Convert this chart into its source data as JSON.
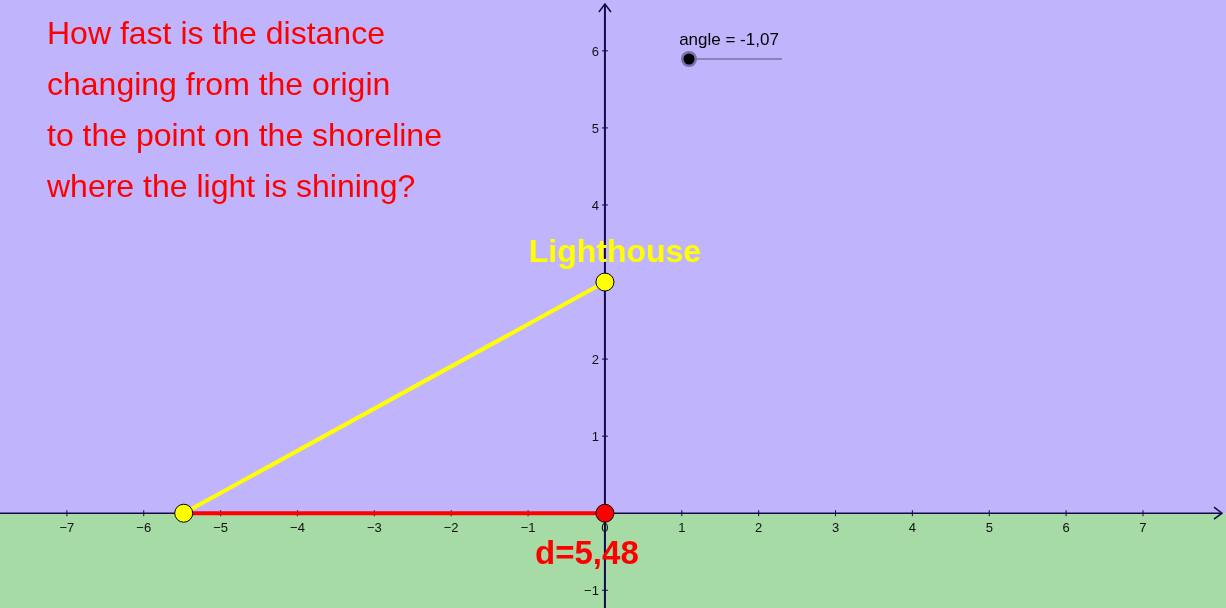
{
  "chart_data": {
    "type": "line",
    "xlim": [
      -7.87,
      8.08
    ],
    "ylim": [
      -1.23,
      6.66
    ],
    "xticks": [
      -7,
      -6,
      -5,
      -4,
      -3,
      -2,
      -1,
      0,
      1,
      2,
      3,
      4,
      5,
      6,
      7
    ],
    "yticks": [
      -1,
      1,
      2,
      {
        "value": 3,
        "label": null
      },
      4,
      5,
      6
    ],
    "grid": false,
    "x": [
      -5.48,
      0
    ],
    "bands": [
      {
        "axis": "y",
        "from": -1.23,
        "to": 0,
        "color": "#a6dba6"
      },
      {
        "axis": "y",
        "from": 0,
        "to": 6.66,
        "color": "#c0b5fc"
      }
    ],
    "series": [
      {
        "color": "#ff0000",
        "values": [
          0,
          0
        ],
        "marker": "none"
      },
      {
        "color": "#ffff00",
        "values": [
          0,
          3
        ],
        "marker": "circle"
      },
      {
        "type": "scatter",
        "color": "#ff0000",
        "values": [
          null,
          0
        ],
        "marker": "circle"
      }
    ],
    "annotations": [
      "How fast is the distance\nchanging from the origin\nto the point on the shoreline\nwhere the light is shining?",
      "angle = -1,07",
      {
        "text": "Lighthouse",
        "x": 0,
        "y": 3
      },
      {
        "text": "d=5,48",
        "x": 0,
        "y": 0
      }
    ]
  }
}
